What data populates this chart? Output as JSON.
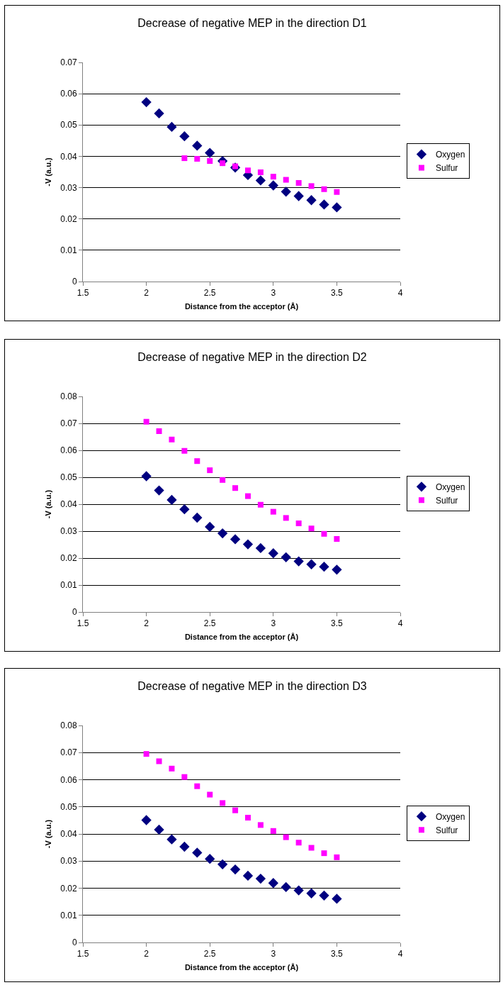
{
  "chart_data": [
    {
      "type": "scatter",
      "title": "Decrease of negative MEP in the direction D1",
      "xlabel": "Distance from the acceptor (Å)",
      "ylabel": "-V (a.u.)",
      "x": [
        2,
        2.1,
        2.2,
        2.3,
        2.4,
        2.5,
        2.6,
        2.7,
        2.8,
        2.9,
        3,
        3.1,
        3.2,
        3.3,
        3.4,
        3.5
      ],
      "xlim": [
        1.5,
        4
      ],
      "xticks": [
        1.5,
        2,
        2.5,
        3,
        3.5,
        4
      ],
      "ylim": [
        0,
        0.07
      ],
      "yticks": [
        0,
        0.01,
        0.02,
        0.03,
        0.04,
        0.05,
        0.06,
        0.07
      ],
      "grid": "y",
      "legend": "right",
      "series": [
        {
          "name": "Oxygen",
          "color": "#000080",
          "marker": "diamond",
          "values": [
            0.0573,
            0.0537,
            0.0494,
            0.0464,
            0.0434,
            0.0411,
            0.0385,
            0.0364,
            0.034,
            0.0323,
            0.0307,
            0.0287,
            0.0273,
            0.026,
            0.0246,
            0.0237
          ]
        },
        {
          "name": "Sulfur",
          "color": "#ff00ff",
          "marker": "square",
          "values": [
            null,
            null,
            null,
            0.0394,
            0.0392,
            0.0385,
            0.0378,
            0.0368,
            0.0355,
            0.0349,
            0.0335,
            0.0325,
            0.0315,
            0.0305,
            0.0295,
            0.0286
          ]
        }
      ]
    },
    {
      "type": "scatter",
      "title": "Decrease of negative MEP in the direction D2",
      "xlabel": "Distance from the acceptor (Å)",
      "ylabel": "-V (a.u.)",
      "x": [
        2,
        2.1,
        2.2,
        2.3,
        2.4,
        2.5,
        2.6,
        2.7,
        2.8,
        2.9,
        3,
        3.1,
        3.2,
        3.3,
        3.4,
        3.5
      ],
      "xlim": [
        1.5,
        4
      ],
      "xticks": [
        1.5,
        2,
        2.5,
        3,
        3.5,
        4
      ],
      "ylim": [
        0,
        0.08
      ],
      "yticks": [
        0,
        0.01,
        0.02,
        0.03,
        0.04,
        0.05,
        0.06,
        0.07,
        0.08
      ],
      "grid": "y",
      "legend": "right",
      "series": [
        {
          "name": "Oxygen",
          "color": "#000080",
          "marker": "diamond",
          "values": [
            0.0504,
            0.0451,
            0.0416,
            0.0381,
            0.035,
            0.0316,
            0.0292,
            0.027,
            0.0251,
            0.0237,
            0.0218,
            0.0203,
            0.0188,
            0.0177,
            0.0168,
            0.0157
          ]
        },
        {
          "name": "Sulfur",
          "color": "#ff00ff",
          "marker": "square",
          "values": [
            0.0706,
            0.0671,
            0.064,
            0.0598,
            0.056,
            0.0526,
            0.049,
            0.046,
            0.043,
            0.0398,
            0.0372,
            0.0349,
            0.0329,
            0.031,
            0.029,
            0.0271
          ]
        }
      ]
    },
    {
      "type": "scatter",
      "title": "Decrease of negative MEP in the direction D3",
      "xlabel": "Distance from the acceptor (Å)",
      "ylabel": "-V (a.u.)",
      "x": [
        2,
        2.1,
        2.2,
        2.3,
        2.4,
        2.5,
        2.6,
        2.7,
        2.8,
        2.9,
        3,
        3.1,
        3.2,
        3.3,
        3.4,
        3.5
      ],
      "xlim": [
        1.5,
        4
      ],
      "xticks": [
        1.5,
        2,
        2.5,
        3,
        3.5,
        4
      ],
      "ylim": [
        0,
        0.08
      ],
      "yticks": [
        0,
        0.01,
        0.02,
        0.03,
        0.04,
        0.05,
        0.06,
        0.07,
        0.08
      ],
      "grid": "y",
      "legend": "right",
      "series": [
        {
          "name": "Oxygen",
          "color": "#000080",
          "marker": "diamond",
          "values": [
            0.0451,
            0.0416,
            0.038,
            0.0353,
            0.0331,
            0.0308,
            0.0288,
            0.0269,
            0.0246,
            0.0235,
            0.0219,
            0.0204,
            0.0192,
            0.0181,
            0.0173,
            0.0161
          ]
        },
        {
          "name": "Sulfur",
          "color": "#ff00ff",
          "marker": "square",
          "values": [
            0.0695,
            0.0668,
            0.0641,
            0.061,
            0.0576,
            0.0545,
            0.0514,
            0.0487,
            0.046,
            0.0433,
            0.0411,
            0.0388,
            0.0368,
            0.0349,
            0.0329,
            0.0314
          ]
        }
      ]
    }
  ]
}
